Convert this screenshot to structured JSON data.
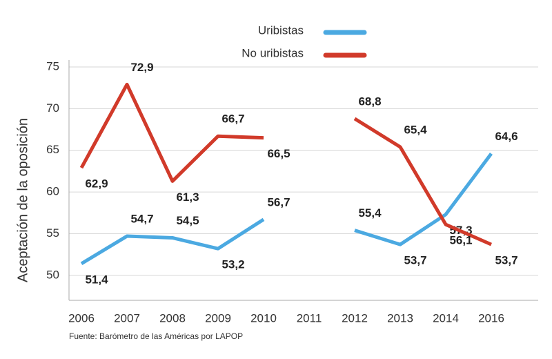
{
  "chart_data": {
    "type": "line",
    "y_label": "Aceptación de la oposición",
    "source": "Fuente: Barómetro de las Américas por LAPOP",
    "categories": [
      "2006",
      "2007",
      "2008",
      "2009",
      "2010",
      "2011",
      "2012",
      "2013",
      "2014",
      "2016"
    ],
    "series": [
      {
        "name": "Uribistas",
        "color": "#4ba9e1",
        "values": [
          51.4,
          54.7,
          54.5,
          53.2,
          56.7,
          null,
          55.4,
          53.7,
          57.3,
          64.6
        ],
        "value_labels": [
          "51,4",
          "54,7",
          "54,5",
          "53,2",
          "56,7",
          null,
          "55,4",
          "53,7",
          "57,3",
          "64,6"
        ]
      },
      {
        "name": "No uribistas",
        "color": "#d13a2a",
        "values": [
          62.9,
          72.9,
          61.3,
          66.7,
          66.5,
          null,
          68.8,
          65.4,
          56.1,
          53.7
        ],
        "value_labels": [
          "62,9",
          "72,9",
          "61,3",
          "66,7",
          "66,5",
          null,
          "68,8",
          "65,4",
          "56,1",
          "53,7"
        ]
      }
    ],
    "ylim": [
      47,
      75
    ],
    "yticks": [
      50,
      55,
      60,
      65,
      70,
      75
    ],
    "grid": true
  }
}
